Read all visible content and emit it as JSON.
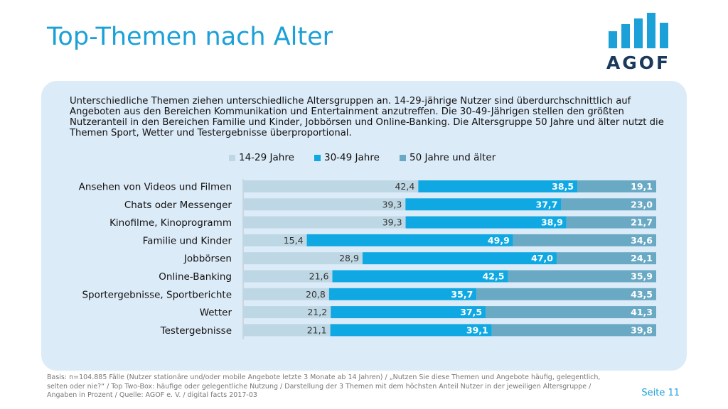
{
  "title": "Top-Themen nach Alter",
  "logo": {
    "text": "AGOF"
  },
  "intro": "Unterschiedliche Themen ziehen unterschiedliche Altersgruppen an. 14-29-jährige Nutzer sind überdurchschnittlich auf Angeboten aus den Bereichen Kommunikation und Entertainment anzutreffen. Die 30-49-Jährigen stellen den größten Nutzeranteil in den Bereichen Familie und Kinder, Jobbörsen und Online-Banking. Die Altersgruppe 50 Jahre und älter nutzt die Themen Sport, Wetter und Testergebnisse überproportional.",
  "chart_data": {
    "type": "bar",
    "orientation": "horizontal",
    "stacked": true,
    "legend_position": "top",
    "categories": [
      "Ansehen von Videos und Filmen",
      "Chats oder Messenger",
      "Kinofilme, Kinoprogramm",
      "Familie und Kinder",
      "Jobbörsen",
      "Online-Banking",
      "Sportergebnisse, Sportberichte",
      "Wetter",
      "Testergebnisse"
    ],
    "series": [
      {
        "name": "14-29 Jahre",
        "color": "#bed7e4",
        "label_color": "#333333",
        "values": [
          42.4,
          39.3,
          39.3,
          15.4,
          28.9,
          21.6,
          20.8,
          21.2,
          21.1
        ],
        "labels": [
          "42,4",
          "39,3",
          "39,3",
          "15,4",
          "28,9",
          "21,6",
          "20,8",
          "21,2",
          "21,1"
        ]
      },
      {
        "name": "30-49 Jahre",
        "color": "#10a8e2",
        "label_color": "#ffffff",
        "values": [
          38.5,
          37.7,
          38.9,
          49.9,
          47.0,
          42.5,
          35.7,
          37.5,
          39.1
        ],
        "labels": [
          "38,5",
          "37,7",
          "38,9",
          "49,9",
          "47,0",
          "42,5",
          "35,7",
          "37,5",
          "39,1"
        ]
      },
      {
        "name": "50 Jahre und älter",
        "color": "#6aa9c4",
        "label_color": "#ffffff",
        "values": [
          19.1,
          23.0,
          21.7,
          34.6,
          24.1,
          35.9,
          43.5,
          41.3,
          39.8
        ],
        "labels": [
          "19,1",
          "23,0",
          "21,7",
          "34,6",
          "24,1",
          "35,9",
          "43,5",
          "41,3",
          "39,8"
        ]
      }
    ]
  },
  "footer": "Basis: n=104.885 Fälle (Nutzer stationäre und/oder mobile Angebote letzte 3 Monate ab 14 Jahren) / „Nutzen Sie diese Themen und Angebote häufig, gelegentlich, selten oder nie?“ / Top Two-Box: häufige oder gelegentliche Nutzung / Darstellung der 3 Themen mit dem höchsten Anteil Nutzer in der jeweiligen Altersgruppe / Angaben in Prozent / Quelle: AGOF e. V. / digital facts 2017-03",
  "page_number": "Seite 11"
}
